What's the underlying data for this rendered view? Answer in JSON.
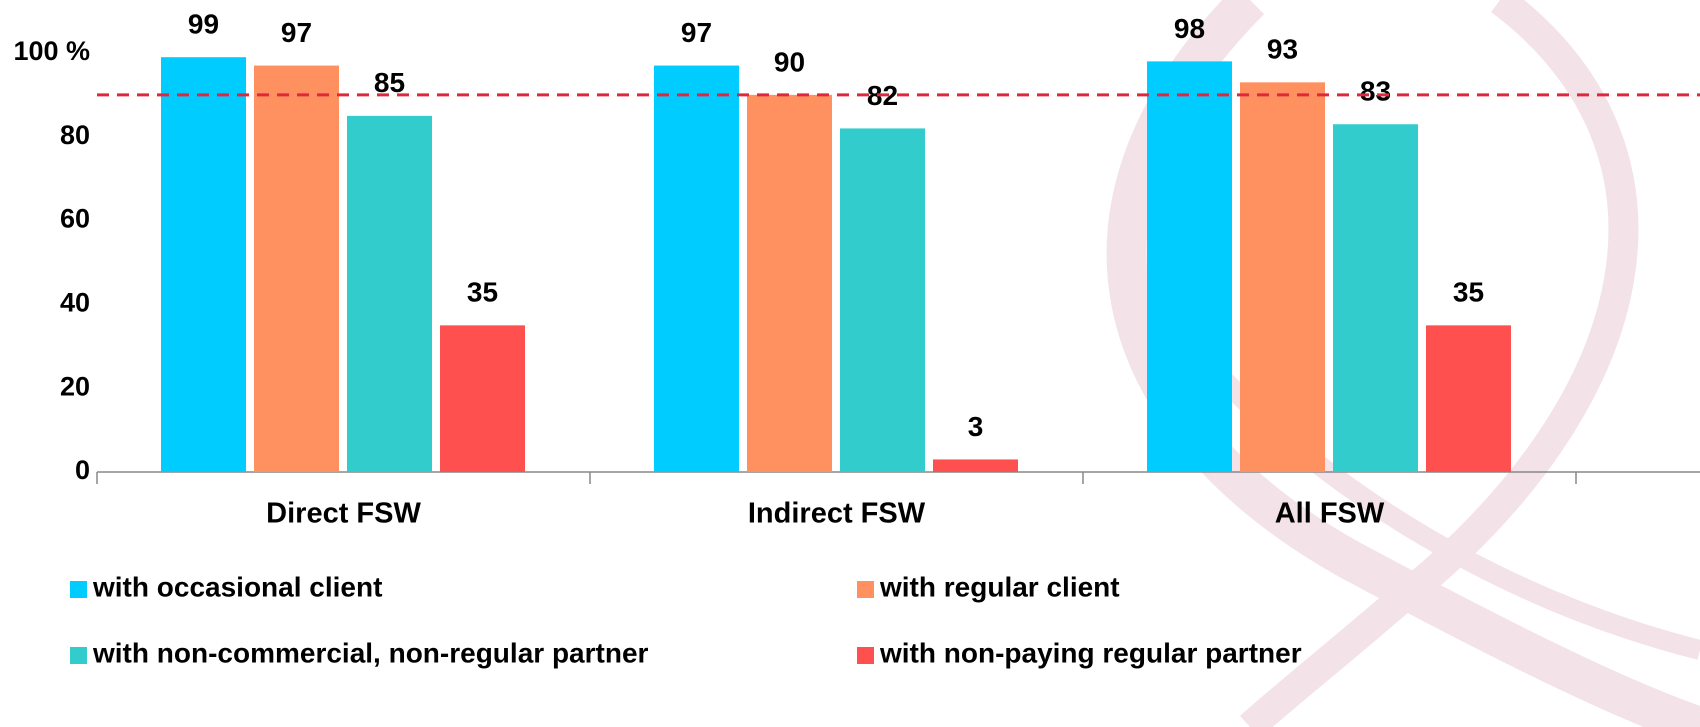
{
  "chart_data": {
    "type": "bar",
    "categories": [
      "Direct FSW",
      "Indirect FSW",
      "All FSW"
    ],
    "series": [
      {
        "name": "with occasional client",
        "color": "#00ccff",
        "values": [
          99,
          97,
          98
        ]
      },
      {
        "name": "with regular client",
        "color": "#ff9060",
        "values": [
          97,
          90,
          93
        ]
      },
      {
        "name": "with non-commercial, non-regular partner",
        "color": "#33cccc",
        "values": [
          85,
          82,
          83
        ]
      },
      {
        "name": "with non-paying regular partner",
        "color": "#ff5050",
        "values": [
          35,
          3,
          35
        ]
      }
    ],
    "ylim": [
      0,
      100
    ],
    "yticks": [
      0,
      20,
      40,
      60,
      80,
      {
        "value": 100,
        "label": "100 %"
      }
    ],
    "reference_line": {
      "value": 90,
      "color": "#e0283c"
    }
  }
}
